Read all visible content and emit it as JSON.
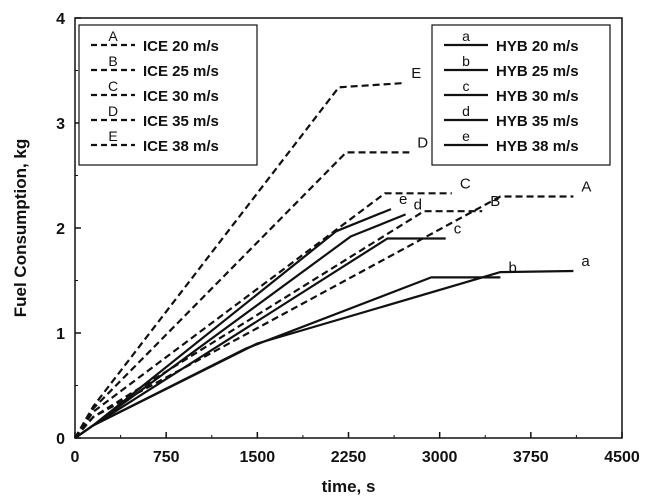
{
  "chart_data": {
    "type": "line",
    "xlabel": "time, s",
    "ylabel": "Fuel Consumption, kg",
    "xlim": [
      0,
      4500
    ],
    "ylim": [
      0,
      4
    ],
    "xticks": [
      0,
      750,
      1500,
      2250,
      3000,
      3750,
      4500
    ],
    "yticks": [
      0,
      1,
      2,
      3,
      4
    ],
    "grid": false,
    "legend": [
      {
        "position": "top-left",
        "entries": [
          {
            "key": "A",
            "label": "ICE 20 m/s"
          },
          {
            "key": "B",
            "label": "ICE 25 m/s"
          },
          {
            "key": "C",
            "label": "ICE 30 m/s"
          },
          {
            "key": "D",
            "label": "ICE 35 m/s"
          },
          {
            "key": "E",
            "label": "ICE 38 m/s"
          }
        ]
      },
      {
        "position": "top-right",
        "entries": [
          {
            "key": "a",
            "label": "HYB 20 m/s"
          },
          {
            "key": "b",
            "label": "HYB 25 m/s"
          },
          {
            "key": "c",
            "label": "HYB 30 m/s"
          },
          {
            "key": "d",
            "label": "HYB 35 m/s"
          },
          {
            "key": "e",
            "label": "HYB 38 m/s"
          }
        ]
      }
    ],
    "series": [
      {
        "name": "ICE 20 m/s",
        "label": "A",
        "style": "dashed",
        "points": [
          [
            0,
            0
          ],
          [
            150,
            0.2
          ],
          [
            3500,
            2.3
          ],
          [
            4100,
            2.3
          ]
        ]
      },
      {
        "name": "ICE 25 m/s",
        "label": "B",
        "style": "dashed",
        "points": [
          [
            0,
            0
          ],
          [
            150,
            0.2
          ],
          [
            2870,
            2.16
          ],
          [
            3350,
            2.16
          ]
        ]
      },
      {
        "name": "ICE 30 m/s",
        "label": "C",
        "style": "dashed",
        "points": [
          [
            0,
            0
          ],
          [
            150,
            0.25
          ],
          [
            2550,
            2.33
          ],
          [
            3100,
            2.33
          ]
        ]
      },
      {
        "name": "ICE 35 m/s",
        "label": "D",
        "style": "dashed",
        "points": [
          [
            0,
            0
          ],
          [
            150,
            0.28
          ],
          [
            2230,
            2.72
          ],
          [
            2750,
            2.72
          ]
        ]
      },
      {
        "name": "ICE 38 m/s",
        "label": "E",
        "style": "dashed",
        "points": [
          [
            0,
            0
          ],
          [
            150,
            0.3
          ],
          [
            2170,
            3.34
          ],
          [
            2700,
            3.38
          ]
        ]
      },
      {
        "name": "HYB 20 m/s",
        "label": "a",
        "style": "solid",
        "points": [
          [
            0,
            0
          ],
          [
            150,
            0.12
          ],
          [
            1500,
            0.9
          ],
          [
            3500,
            1.58
          ],
          [
            4100,
            1.59
          ]
        ]
      },
      {
        "name": "HYB 25 m/s",
        "label": "b",
        "style": "solid",
        "points": [
          [
            0,
            0
          ],
          [
            150,
            0.12
          ],
          [
            1400,
            0.85
          ],
          [
            2930,
            1.53
          ],
          [
            3500,
            1.53
          ]
        ]
      },
      {
        "name": "HYB 30 m/s",
        "label": "c",
        "style": "solid",
        "points": [
          [
            0,
            0
          ],
          [
            150,
            0.12
          ],
          [
            2570,
            1.9
          ],
          [
            3050,
            1.9
          ]
        ]
      },
      {
        "name": "HYB 35 m/s",
        "label": "d",
        "style": "solid",
        "points": [
          [
            0,
            0
          ],
          [
            150,
            0.12
          ],
          [
            2270,
            1.92
          ],
          [
            2720,
            2.13
          ]
        ]
      },
      {
        "name": "HYB 38 m/s",
        "label": "e",
        "style": "solid",
        "points": [
          [
            0,
            0
          ],
          [
            150,
            0.12
          ],
          [
            2150,
            1.97
          ],
          [
            2600,
            2.18
          ]
        ]
      }
    ]
  }
}
